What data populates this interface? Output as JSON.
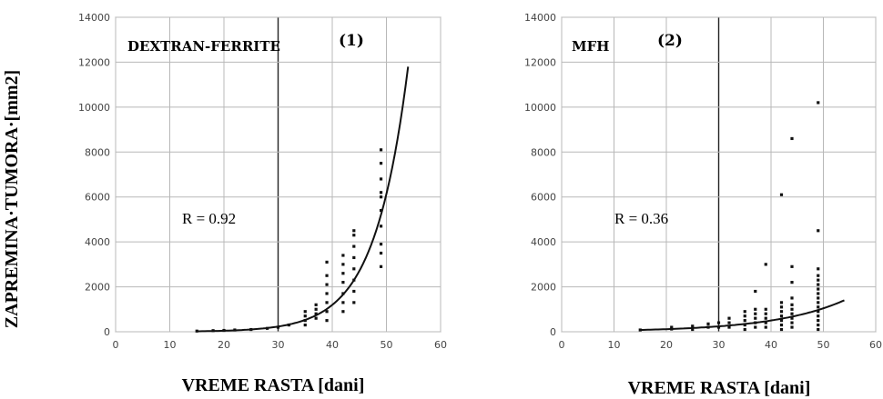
{
  "y_axis_label": "ZAPREMINA·TUMORA·[mm2]",
  "chart_data": [
    {
      "type": "scatter",
      "title": "DEXTRAN-FERRITE",
      "number": "(1)",
      "annotation": "R = 0.92",
      "xlabel": "VREME RASTA [dani]",
      "xlim": [
        0,
        60
      ],
      "ylim": [
        0,
        14000
      ],
      "xticks": [
        "0",
        "10",
        "20",
        "30",
        "40",
        "50",
        "60"
      ],
      "yticks": [
        "0",
        "2000",
        "4000",
        "6000",
        "8000",
        "10000",
        "12000",
        "14000"
      ],
      "highlight_x": 30,
      "points": [
        [
          15,
          30
        ],
        [
          18,
          50
        ],
        [
          20,
          60
        ],
        [
          22,
          80
        ],
        [
          25,
          100
        ],
        [
          28,
          150
        ],
        [
          30,
          200
        ],
        [
          32,
          300
        ],
        [
          35,
          300
        ],
        [
          35,
          500
        ],
        [
          35,
          700
        ],
        [
          35,
          900
        ],
        [
          37,
          600
        ],
        [
          37,
          800
        ],
        [
          37,
          1000
        ],
        [
          37,
          1200
        ],
        [
          39,
          500
        ],
        [
          39,
          900
        ],
        [
          39,
          1300
        ],
        [
          39,
          1700
        ],
        [
          39,
          2100
        ],
        [
          39,
          2500
        ],
        [
          39,
          3100
        ],
        [
          42,
          900
        ],
        [
          42,
          1300
        ],
        [
          42,
          1700
        ],
        [
          42,
          2200
        ],
        [
          42,
          2600
        ],
        [
          42,
          3000
        ],
        [
          42,
          3400
        ],
        [
          44,
          1300
        ],
        [
          44,
          1800
        ],
        [
          44,
          2300
        ],
        [
          44,
          2800
        ],
        [
          44,
          3300
        ],
        [
          44,
          3800
        ],
        [
          44,
          4300
        ],
        [
          44,
          4500
        ],
        [
          49,
          2900
        ],
        [
          49,
          3500
        ],
        [
          49,
          3900
        ],
        [
          49,
          4700
        ],
        [
          49,
          5400
        ],
        [
          49,
          6000
        ],
        [
          49,
          6200
        ],
        [
          49,
          6800
        ],
        [
          49,
          7500
        ],
        [
          49,
          8100
        ]
      ],
      "fit": {
        "type": "exponential",
        "x_start": 15,
        "x_end": 54,
        "y_start": 20,
        "y_end": 11800
      }
    },
    {
      "type": "scatter",
      "title": "MFH",
      "number": "(2)",
      "annotation": "R = 0.36",
      "xlabel": "VREME RASTA [dani]",
      "xlim": [
        0,
        60
      ],
      "ylim": [
        0,
        14000
      ],
      "xticks": [
        "0",
        "10",
        "20",
        "30",
        "40",
        "50",
        "60"
      ],
      "yticks": [
        "0",
        "2000",
        "4000",
        "6000",
        "8000",
        "10000",
        "12000",
        "14000"
      ],
      "highlight_x": 30,
      "points": [
        [
          15,
          80
        ],
        [
          21,
          120
        ],
        [
          21,
          200
        ],
        [
          25,
          100
        ],
        [
          25,
          250
        ],
        [
          28,
          200
        ],
        [
          28,
          350
        ],
        [
          30,
          200
        ],
        [
          30,
          400
        ],
        [
          32,
          200
        ],
        [
          32,
          400
        ],
        [
          32,
          600
        ],
        [
          35,
          100
        ],
        [
          35,
          300
        ],
        [
          35,
          500
        ],
        [
          35,
          700
        ],
        [
          35,
          900
        ],
        [
          37,
          200
        ],
        [
          37,
          400
        ],
        [
          37,
          600
        ],
        [
          37,
          800
        ],
        [
          37,
          1000
        ],
        [
          37,
          1800
        ],
        [
          39,
          200
        ],
        [
          39,
          400
        ],
        [
          39,
          600
        ],
        [
          39,
          800
        ],
        [
          39,
          1000
        ],
        [
          39,
          3000
        ],
        [
          42,
          100
        ],
        [
          42,
          300
        ],
        [
          42,
          500
        ],
        [
          42,
          700
        ],
        [
          42,
          900
        ],
        [
          42,
          1100
        ],
        [
          42,
          1300
        ],
        [
          42,
          6100
        ],
        [
          44,
          200
        ],
        [
          44,
          400
        ],
        [
          44,
          600
        ],
        [
          44,
          800
        ],
        [
          44,
          1000
        ],
        [
          44,
          1200
        ],
        [
          44,
          1500
        ],
        [
          44,
          2200
        ],
        [
          44,
          2900
        ],
        [
          44,
          8600
        ],
        [
          49,
          100
        ],
        [
          49,
          300
        ],
        [
          49,
          500
        ],
        [
          49,
          700
        ],
        [
          49,
          900
        ],
        [
          49,
          1100
        ],
        [
          49,
          1300
        ],
        [
          49,
          1500
        ],
        [
          49,
          1700
        ],
        [
          49,
          1900
        ],
        [
          49,
          2100
        ],
        [
          49,
          2300
        ],
        [
          49,
          2500
        ],
        [
          49,
          2800
        ],
        [
          49,
          4500
        ],
        [
          49,
          10200
        ]
      ],
      "fit": {
        "type": "exponential",
        "x_start": 15,
        "x_end": 54,
        "y_start": 80,
        "y_end": 1400
      }
    }
  ]
}
